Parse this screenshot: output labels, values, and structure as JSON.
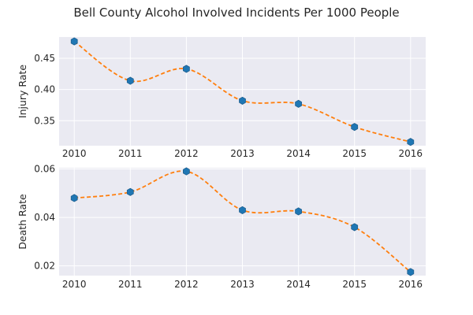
{
  "title": "Bell County Alcohol Involved Incidents Per 1000 People",
  "colors": {
    "marker": "#1f77b4",
    "curve": "#ff7f0e",
    "panel": "#eaeaf2"
  },
  "chart_data": [
    {
      "type": "line",
      "ylabel": "Injury Rate",
      "x": [
        2010,
        2011,
        2012,
        2013,
        2014,
        2015,
        2016
      ],
      "tick_labels": [
        "2010",
        "2011",
        "2012",
        "2013",
        "2014",
        "2015",
        "2016"
      ],
      "values": [
        0.477,
        0.414,
        0.433,
        0.382,
        0.377,
        0.34,
        0.316
      ],
      "ylim": [
        0.31,
        0.484
      ],
      "yticks": [
        0.35,
        0.4,
        0.45
      ],
      "ytick_labels": [
        "0.35",
        "0.40",
        "0.45"
      ],
      "grid": true
    },
    {
      "type": "line",
      "ylabel": "Death Rate",
      "x": [
        2010,
        2011,
        2012,
        2013,
        2014,
        2015,
        2016
      ],
      "tick_labels": [
        "2010",
        "2011",
        "2012",
        "2013",
        "2014",
        "2015",
        "2016"
      ],
      "values": [
        0.048,
        0.0505,
        0.059,
        0.043,
        0.0425,
        0.036,
        0.0175
      ],
      "ylim": [
        0.016,
        0.0605
      ],
      "yticks": [
        0.02,
        0.04,
        0.06
      ],
      "ytick_labels": [
        "0.02",
        "0.04",
        "0.06"
      ],
      "grid": true
    }
  ]
}
